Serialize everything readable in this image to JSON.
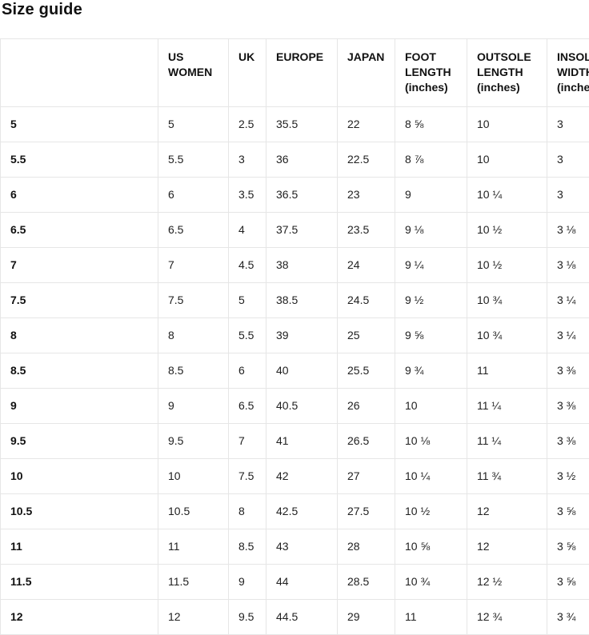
{
  "page": {
    "title": "Size guide"
  },
  "table": {
    "columns": [
      {
        "label": ""
      },
      {
        "label": "US WOMEN"
      },
      {
        "label": "UK"
      },
      {
        "label": "EUROPE"
      },
      {
        "label": "JAPAN"
      },
      {
        "label": "FOOT LENGTH (inches)"
      },
      {
        "label": "OUTSOLE LENGTH (inches)"
      },
      {
        "label": "INSOLE WIDTH (inches)"
      }
    ],
    "rows": [
      {
        "label": "5",
        "cells": [
          "5",
          "2.5",
          "35.5",
          "22",
          "8 ⅝",
          "10",
          "3"
        ]
      },
      {
        "label": "5.5",
        "cells": [
          "5.5",
          "3",
          "36",
          "22.5",
          "8 ⅞",
          "10",
          "3"
        ]
      },
      {
        "label": "6",
        "cells": [
          "6",
          "3.5",
          "36.5",
          "23",
          "9",
          "10 ¼",
          "3"
        ]
      },
      {
        "label": "6.5",
        "cells": [
          "6.5",
          "4",
          "37.5",
          "23.5",
          "9 ⅛",
          "10 ½",
          "3 ⅛"
        ]
      },
      {
        "label": "7",
        "cells": [
          "7",
          "4.5",
          "38",
          "24",
          "9 ¼",
          "10 ½",
          "3 ⅛"
        ]
      },
      {
        "label": "7.5",
        "cells": [
          "7.5",
          "5",
          "38.5",
          "24.5",
          "9 ½",
          "10 ¾",
          "3 ¼"
        ]
      },
      {
        "label": "8",
        "cells": [
          "8",
          "5.5",
          "39",
          "25",
          "9 ⅝",
          "10 ¾",
          "3 ¼"
        ]
      },
      {
        "label": "8.5",
        "cells": [
          "8.5",
          "6",
          "40",
          "25.5",
          "9 ¾",
          "11",
          "3 ⅜"
        ]
      },
      {
        "label": "9",
        "cells": [
          "9",
          "6.5",
          "40.5",
          "26",
          "10",
          "11 ¼",
          "3 ⅜"
        ]
      },
      {
        "label": "9.5",
        "cells": [
          "9.5",
          "7",
          "41",
          "26.5",
          "10 ⅛",
          "11 ¼",
          "3 ⅜"
        ]
      },
      {
        "label": "10",
        "cells": [
          "10",
          "7.5",
          "42",
          "27",
          "10 ¼",
          "11 ¾",
          "3 ½"
        ]
      },
      {
        "label": "10.5",
        "cells": [
          "10.5",
          "8",
          "42.5",
          "27.5",
          "10 ½",
          "12",
          "3 ⅝"
        ]
      },
      {
        "label": "11",
        "cells": [
          "11",
          "8.5",
          "43",
          "28",
          "10 ⅝",
          "12",
          "3 ⅝"
        ]
      },
      {
        "label": "11.5",
        "cells": [
          "11.5",
          "9",
          "44",
          "28.5",
          "10 ¾",
          "12 ½",
          "3 ⅝"
        ]
      },
      {
        "label": "12",
        "cells": [
          "12",
          "9.5",
          "44.5",
          "29",
          "11",
          "12 ¾",
          "3 ¾"
        ]
      }
    ]
  }
}
